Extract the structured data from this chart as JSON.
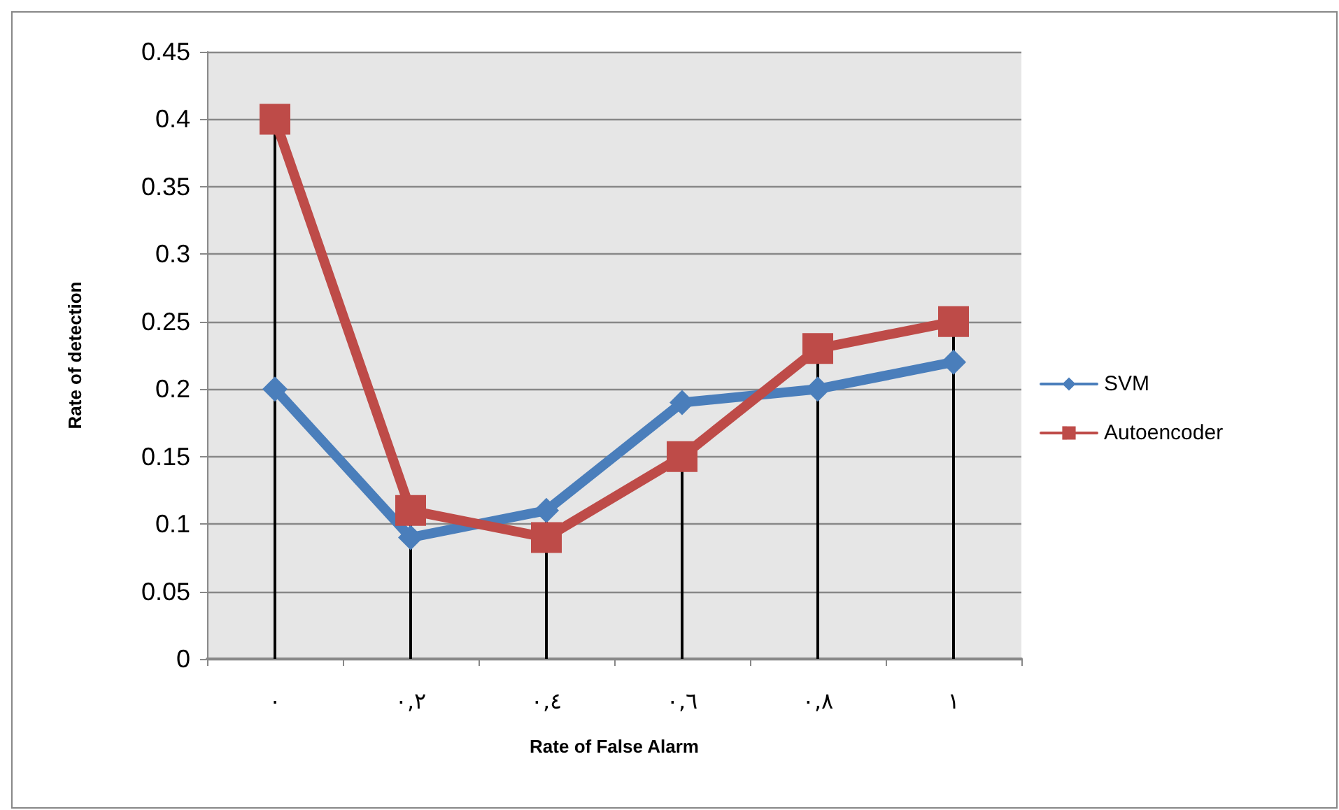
{
  "chart_data": {
    "type": "line",
    "xlabel": "Rate of False Alarm",
    "ylabel": "Rate of detection",
    "categories": [
      "٠",
      "٠,٢",
      "٠,٤",
      "٠,٦",
      "٠,٨",
      "١"
    ],
    "series": [
      {
        "name": "SVM",
        "color": "#4a7ebb",
        "marker": "diamond",
        "values": [
          0.2,
          0.09,
          0.11,
          0.19,
          0.2,
          0.22
        ],
        "errors": [
          null,
          null,
          [
            0,
            0.11
          ],
          null,
          null,
          null
        ]
      },
      {
        "name": "Autoencoder",
        "color": "#be4b48",
        "marker": "square",
        "values": [
          0.4,
          0.11,
          0.09,
          0.15,
          0.23,
          0.25
        ],
        "errors": [
          [
            0,
            0.4
          ],
          [
            0,
            0.11
          ],
          null,
          [
            0,
            0.15
          ],
          [
            0,
            0.23
          ],
          [
            0,
            0.25
          ]
        ]
      }
    ],
    "ylim": [
      0,
      0.45
    ],
    "yticks": [
      0,
      0.05,
      0.1,
      0.15,
      0.2,
      0.25,
      0.3,
      0.35,
      0.4,
      0.45
    ],
    "grid": "y",
    "legend": "right"
  }
}
